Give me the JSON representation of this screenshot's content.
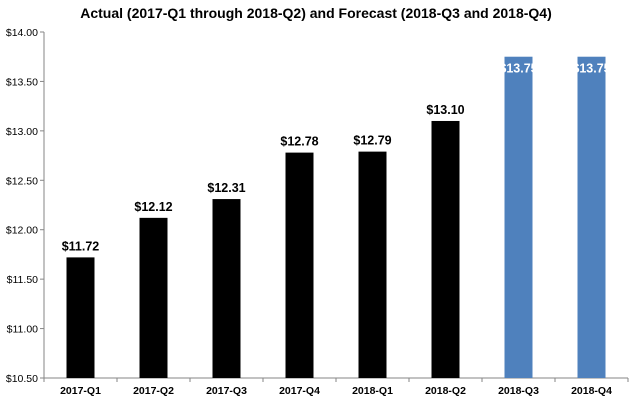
{
  "chart_data": {
    "type": "bar",
    "title": "Actual (2017-Q1 through 2018-Q2) and Forecast (2018-Q3 and 2018-Q4)",
    "xlabel": "",
    "ylabel": "",
    "categories": [
      "2017-Q1",
      "2017-Q2",
      "2017-Q3",
      "2017-Q4",
      "2018-Q1",
      "2018-Q2",
      "2018-Q3",
      "2018-Q4"
    ],
    "values": [
      11.72,
      12.12,
      12.31,
      12.78,
      12.79,
      13.1,
      13.75,
      13.75
    ],
    "data_labels": [
      "$11.72",
      "$12.12",
      "$12.31",
      "$12.78",
      "$12.79",
      "$13.10",
      "$13.75",
      "$13.75"
    ],
    "bar_colors": [
      "#000000",
      "#000000",
      "#000000",
      "#000000",
      "#000000",
      "#000000",
      "#4f81bd",
      "#4f81bd"
    ],
    "data_label_colors": [
      "#000000",
      "#000000",
      "#000000",
      "#000000",
      "#000000",
      "#000000",
      "#ffffff",
      "#ffffff"
    ],
    "ylim": [
      10.5,
      14.0
    ],
    "yticks": [
      10.5,
      11.0,
      11.5,
      12.0,
      12.5,
      13.0,
      13.5,
      14.0
    ],
    "ytick_labels": [
      "$10.50",
      "$11.00",
      "$11.50",
      "$12.00",
      "$12.50",
      "$13.00",
      "$13.50",
      "$14.00"
    ],
    "grid": false,
    "legend": "none"
  }
}
